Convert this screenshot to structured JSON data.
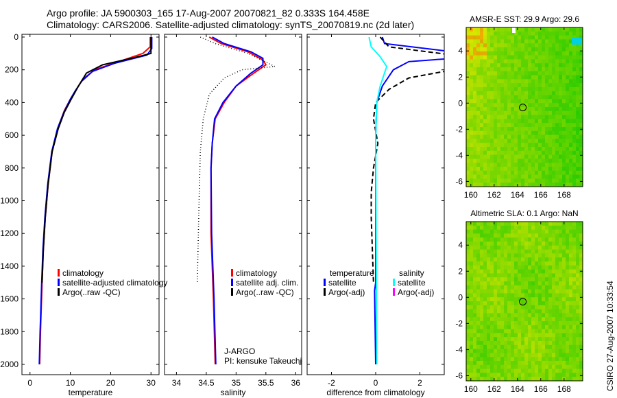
{
  "header": {
    "line1": "Argo profile: JA 5900303_165 17-Aug-2007 20070821_82 0.333S 164.458E",
    "line2": "Climatology: CARS2006. Satellite-adjusted climatology: synTS_20070819.nc (2d later)"
  },
  "side_label": "CSIRO 27-Aug-2007 10:33:54",
  "colors": {
    "clim": "#ff0000",
    "sat": "#0000ff",
    "argo": "#000000",
    "sal_sat": "#00ffff",
    "sal_argo": "#ff00ff"
  },
  "chart_data": [
    {
      "type": "line",
      "xlabel": "temperature",
      "xlim": [
        -2,
        32
      ],
      "ylim": [
        2050,
        0
      ],
      "yticks": [
        0,
        200,
        400,
        600,
        800,
        1000,
        1200,
        1400,
        1600,
        1800,
        2000
      ],
      "xticks": [
        0,
        10,
        20,
        30
      ],
      "legend": [
        "climatology",
        "satellite-adjusted climatology",
        "Argo(..raw -QC)"
      ],
      "series": [
        {
          "name": "climatology",
          "style": "clim",
          "points": [
            [
              29.8,
              0
            ],
            [
              29.8,
              60
            ],
            [
              28,
              100
            ],
            [
              22,
              150
            ],
            [
              16,
              200
            ],
            [
              13,
              260
            ],
            [
              11.5,
              320
            ],
            [
              10,
              380
            ],
            [
              8.5,
              450
            ],
            [
              7,
              550
            ],
            [
              5.5,
              700
            ],
            [
              4.5,
              900
            ],
            [
              3.8,
              1100
            ],
            [
              3.3,
              1300
            ],
            [
              3,
              1500
            ],
            [
              2.6,
              1800
            ],
            [
              2.4,
              2000
            ]
          ]
        },
        {
          "name": "satellite-adjusted climatology",
          "style": "sat",
          "points": [
            [
              30.2,
              0
            ],
            [
              30.2,
              70
            ],
            [
              29,
              110
            ],
            [
              21,
              160
            ],
            [
              15.5,
              210
            ],
            [
              12.8,
              270
            ],
            [
              11.2,
              330
            ],
            [
              10,
              380
            ],
            [
              8.4,
              460
            ],
            [
              6.8,
              560
            ],
            [
              5.4,
              700
            ],
            [
              4.4,
              900
            ],
            [
              3.7,
              1100
            ],
            [
              3.2,
              1300
            ],
            [
              2.9,
              1500
            ],
            [
              2.5,
              1800
            ],
            [
              2.3,
              2000
            ]
          ]
        },
        {
          "name": "Argo(..raw -QC)",
          "style": "argo",
          "points": [
            [
              30,
              0
            ],
            [
              30,
              100
            ],
            [
              26,
              125
            ],
            [
              18,
              170
            ],
            [
              14,
              220
            ],
            [
              12,
              300
            ],
            [
              10.2,
              380
            ],
            [
              8.5,
              460
            ],
            [
              7,
              560
            ],
            [
              5.5,
              700
            ],
            [
              4.5,
              900
            ],
            [
              3.8,
              1100
            ],
            [
              3.3,
              1300
            ],
            [
              3,
              1500
            ]
          ]
        }
      ]
    },
    {
      "type": "line",
      "xlabel": "salinity",
      "xlim": [
        33.8,
        36.1
      ],
      "ylim": [
        2050,
        0
      ],
      "xticks": [
        34,
        34.5,
        35,
        35.5,
        36
      ],
      "legend": [
        "climatology",
        "satellite adj. clim.",
        "Argo(..raw -QC)"
      ],
      "annotation": [
        "J-ARGO",
        "PI: kensuke Takeuchi"
      ],
      "series": [
        {
          "name": "climatology",
          "style": "clim",
          "points": [
            [
              34.55,
              0
            ],
            [
              34.75,
              40
            ],
            [
              35.2,
              90
            ],
            [
              35.45,
              140
            ],
            [
              35.5,
              170
            ],
            [
              35.3,
              220
            ],
            [
              35,
              300
            ],
            [
              34.8,
              400
            ],
            [
              34.65,
              500
            ],
            [
              34.6,
              650
            ],
            [
              34.58,
              800
            ],
            [
              34.58,
              1200
            ],
            [
              34.62,
              1600
            ],
            [
              34.65,
              2000
            ]
          ]
        },
        {
          "name": "satellite adj. clim.",
          "style": "sat",
          "points": [
            [
              34.6,
              0
            ],
            [
              34.8,
              40
            ],
            [
              35.25,
              90
            ],
            [
              35.45,
              130
            ],
            [
              35.45,
              170
            ],
            [
              35.25,
              220
            ],
            [
              35,
              300
            ],
            [
              34.78,
              400
            ],
            [
              34.64,
              500
            ],
            [
              34.6,
              650
            ],
            [
              34.58,
              800
            ],
            [
              34.59,
              1200
            ],
            [
              34.63,
              1600
            ],
            [
              34.66,
              2000
            ]
          ]
        },
        {
          "name": "Argo(..raw -QC)",
          "style": "argo",
          "dotted": true,
          "points": [
            [
              34.4,
              0
            ],
            [
              34.65,
              40
            ],
            [
              35.2,
              100
            ],
            [
              35.65,
              180
            ],
            [
              35.1,
              200
            ],
            [
              34.8,
              250
            ],
            [
              34.55,
              350
            ],
            [
              34.45,
              500
            ],
            [
              34.4,
              700
            ],
            [
              34.38,
              1000
            ],
            [
              34.35,
              1500
            ]
          ]
        }
      ]
    },
    {
      "type": "line",
      "xlabel": "difference from climatology",
      "xlim": [
        -3.1,
        3.1
      ],
      "ylim": [
        2050,
        0
      ],
      "xticks": [
        -2,
        0,
        2
      ],
      "legend": [
        "temperature",
        "satellite",
        "Argo(-adj)",
        "salinity",
        "satellite",
        "Argo(-adj)"
      ],
      "series": [
        {
          "name": "temperature satellite",
          "style": "sat",
          "points": [
            [
              0.3,
              0
            ],
            [
              0.4,
              40
            ],
            [
              3.5,
              90
            ],
            [
              3.5,
              130
            ],
            [
              1.5,
              150
            ],
            [
              0.8,
              200
            ],
            [
              0.3,
              300
            ],
            [
              0.05,
              400
            ],
            [
              0,
              600
            ],
            [
              0,
              1500
            ],
            [
              -0.05,
              1550
            ],
            [
              0,
              2000
            ]
          ]
        },
        {
          "name": "temperature Argo(-adj)",
          "style": "argo",
          "dashed": true,
          "points": [
            [
              0.2,
              0
            ],
            [
              0.6,
              60
            ],
            [
              3.5,
              110
            ],
            [
              3.5,
              200
            ],
            [
              1.5,
              250
            ],
            [
              0.6,
              320
            ],
            [
              0,
              400
            ],
            [
              -0.1,
              500
            ],
            [
              0.1,
              650
            ],
            [
              -0.1,
              800
            ],
            [
              -0.2,
              950
            ],
            [
              -0.2,
              1100
            ],
            [
              -0.1,
              1500
            ]
          ]
        },
        {
          "name": "salinity satellite",
          "style": "sal_sat",
          "points": [
            [
              -0.3,
              0
            ],
            [
              -0.2,
              60
            ],
            [
              0.2,
              120
            ],
            [
              0.5,
              180
            ],
            [
              0.2,
              300
            ],
            [
              0.05,
              400
            ],
            [
              0,
              600
            ],
            [
              0.05,
              2000
            ]
          ]
        }
      ]
    }
  ],
  "maps": [
    {
      "title": "AMSR-E SST: 29.9 Argo: 29.6",
      "xticks": [
        160,
        162,
        164,
        166,
        168
      ],
      "yticks": [
        4,
        2,
        0,
        -2,
        -4,
        -6
      ],
      "marker": [
        164.458,
        -0.333
      ]
    },
    {
      "title": "Altimetric SLA: 0.1 Argo: NaN",
      "xticks": [
        160,
        162,
        164,
        166,
        168
      ],
      "yticks": [
        4,
        2,
        0,
        -2,
        -4,
        -6
      ],
      "marker": [
        164.458,
        -0.333
      ]
    }
  ]
}
